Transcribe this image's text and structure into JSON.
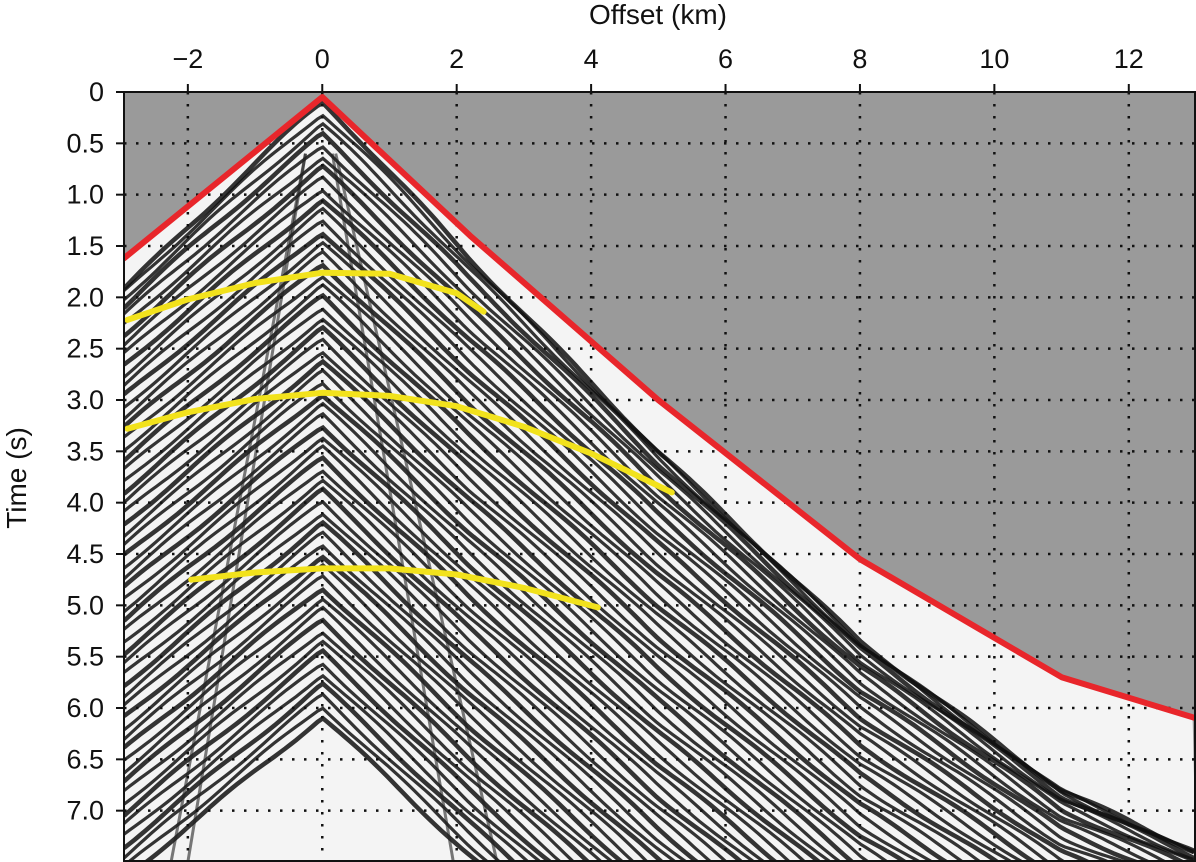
{
  "chart_data": {
    "type": "line",
    "title": "",
    "xlabel": "Offset (km)",
    "ylabel": "Time (s)",
    "x_axis_position": "top",
    "y_axis_inverted": true,
    "xlim": [
      -2.95,
      13.0
    ],
    "ylim": [
      0,
      7.5
    ],
    "x_ticks": [
      -2,
      0,
      2,
      4,
      6,
      8,
      10,
      12
    ],
    "x_tick_labels": [
      "−2",
      "0",
      "2",
      "4",
      "6",
      "8",
      "10",
      "12"
    ],
    "y_ticks": [
      0,
      0.5,
      1.0,
      1.5,
      2.0,
      2.5,
      3.0,
      3.5,
      4.0,
      4.5,
      5.0,
      5.5,
      6.0,
      6.5,
      7.0
    ],
    "y_tick_labels": [
      "0",
      "0.5",
      "1.0",
      "1.5",
      "2.0",
      "2.5",
      "3.0",
      "3.5",
      "4.0",
      "4.5",
      "5.0",
      "5.5",
      "6.0",
      "6.5",
      "7.0"
    ],
    "grid": true,
    "grid_style": "dotted",
    "background": "seismic shot gather (wiggle traces)",
    "series": [
      {
        "color": "#e8262b",
        "points": [
          [
            -2.95,
            1.62
          ],
          [
            0.0,
            0.05
          ],
          [
            2.2,
            1.4
          ],
          [
            5.0,
            3.0
          ],
          [
            8.0,
            4.55
          ],
          [
            11.0,
            5.7
          ],
          [
            13.0,
            6.1
          ]
        ]
      },
      {
        "color": "#f2e21c",
        "points": [
          [
            -2.9,
            2.22
          ],
          [
            -2.0,
            2.02
          ],
          [
            -1.0,
            1.86
          ],
          [
            0.0,
            1.76
          ],
          [
            1.0,
            1.77
          ],
          [
            2.0,
            1.96
          ],
          [
            2.4,
            2.14
          ]
        ]
      },
      {
        "color": "#f2e21c",
        "points": [
          [
            -2.9,
            3.28
          ],
          [
            -2.0,
            3.12
          ],
          [
            -1.0,
            2.99
          ],
          [
            0.0,
            2.93
          ],
          [
            1.0,
            2.96
          ],
          [
            2.0,
            3.06
          ],
          [
            3.0,
            3.26
          ],
          [
            4.0,
            3.52
          ],
          [
            5.2,
            3.9
          ]
        ]
      },
      {
        "color": "#f2e21c",
        "points": [
          [
            -1.95,
            4.75
          ],
          [
            -1.0,
            4.68
          ],
          [
            0.0,
            4.64
          ],
          [
            1.0,
            4.64
          ],
          [
            2.0,
            4.7
          ],
          [
            3.0,
            4.83
          ],
          [
            4.1,
            5.02
          ]
        ]
      }
    ]
  }
}
